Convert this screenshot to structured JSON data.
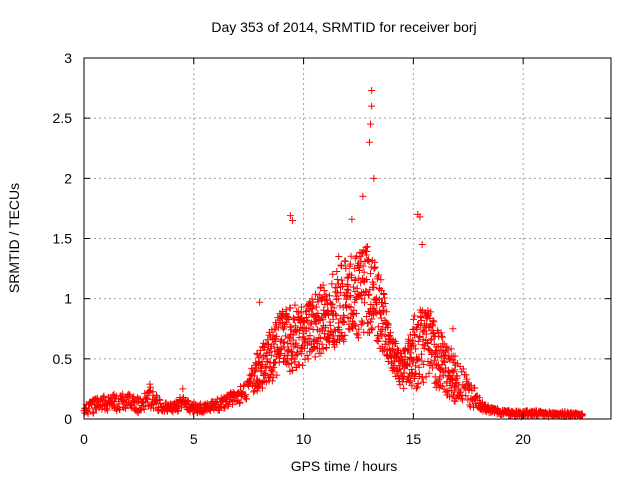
{
  "colors": {
    "series": "#ff0000",
    "grid": "#a0a0a0",
    "axes": "#000000",
    "background": "#ffffff"
  },
  "chart_data": {
    "type": "scatter",
    "title": "Day 353 of 2014, SRMTID for receiver borj",
    "xlabel": "GPS time / hours",
    "ylabel": "SRMTID / TECUs",
    "xlim": [
      0,
      24
    ],
    "ylim": [
      0,
      3
    ],
    "xticks": [
      0,
      5,
      10,
      15,
      20
    ],
    "xtick_labels": [
      "0",
      "5",
      "10",
      "15",
      "20"
    ],
    "yticks": [
      0,
      0.5,
      1,
      1.5,
      2,
      2.5,
      3
    ],
    "ytick_labels": [
      "0",
      "0.5",
      "1",
      "1.5",
      "2",
      "2.5",
      "3"
    ],
    "grid": true,
    "marker": "+",
    "series": [
      {
        "name": "SRMTID",
        "color": "#ff0000",
        "envelope": {
          "note": "approximate upper/lower envelope of the scatter read from gridlines",
          "x": [
            0,
            0.5,
            1,
            1.5,
            2,
            2.5,
            3,
            3.5,
            4,
            4.5,
            5,
            5.5,
            6,
            6.5,
            7,
            7.5,
            8,
            8.5,
            9,
            9.5,
            10,
            10.5,
            11,
            11.5,
            12,
            12.5,
            13,
            13.5,
            14,
            14.5,
            15,
            15.5,
            16,
            16.5,
            17,
            17.5,
            18,
            18.5,
            19,
            19.5,
            20,
            20.5,
            21,
            21.5,
            22,
            22.5
          ],
          "lower": [
            0.03,
            0.05,
            0.06,
            0.06,
            0.07,
            0.05,
            0.09,
            0.06,
            0.05,
            0.06,
            0.05,
            0.05,
            0.06,
            0.08,
            0.12,
            0.16,
            0.24,
            0.3,
            0.38,
            0.4,
            0.45,
            0.5,
            0.55,
            0.6,
            0.62,
            0.65,
            0.7,
            0.58,
            0.4,
            0.25,
            0.22,
            0.28,
            0.26,
            0.18,
            0.12,
            0.1,
            0.07,
            0.05,
            0.03,
            0.02,
            0.02,
            0.02,
            0.02,
            0.02,
            0.02,
            0.02
          ],
          "upper": [
            0.12,
            0.18,
            0.2,
            0.21,
            0.22,
            0.18,
            0.28,
            0.15,
            0.13,
            0.2,
            0.14,
            0.13,
            0.16,
            0.2,
            0.25,
            0.35,
            0.62,
            0.75,
            0.9,
            0.95,
            0.95,
            1.05,
            1.15,
            1.25,
            1.35,
            1.4,
            1.45,
            1.2,
            0.7,
            0.55,
            0.85,
            0.95,
            0.85,
            0.65,
            0.5,
            0.35,
            0.2,
            0.1,
            0.08,
            0.07,
            0.07,
            0.07,
            0.06,
            0.06,
            0.06,
            0.05
          ]
        },
        "peaks": [
          {
            "x": 3.0,
            "y": 0.29
          },
          {
            "x": 4.5,
            "y": 0.25
          },
          {
            "x": 8.0,
            "y": 0.97
          },
          {
            "x": 9.4,
            "y": 1.69
          },
          {
            "x": 9.5,
            "y": 1.65
          },
          {
            "x": 11.6,
            "y": 1.35
          },
          {
            "x": 12.2,
            "y": 1.66
          },
          {
            "x": 12.7,
            "y": 1.85
          },
          {
            "x": 13.0,
            "y": 2.3
          },
          {
            "x": 13.05,
            "y": 2.45
          },
          {
            "x": 13.1,
            "y": 2.73
          },
          {
            "x": 13.1,
            "y": 2.6
          },
          {
            "x": 13.2,
            "y": 2.0
          },
          {
            "x": 15.2,
            "y": 1.7
          },
          {
            "x": 15.3,
            "y": 1.68
          },
          {
            "x": 15.4,
            "y": 1.45
          },
          {
            "x": 16.8,
            "y": 0.75
          }
        ]
      }
    ]
  }
}
